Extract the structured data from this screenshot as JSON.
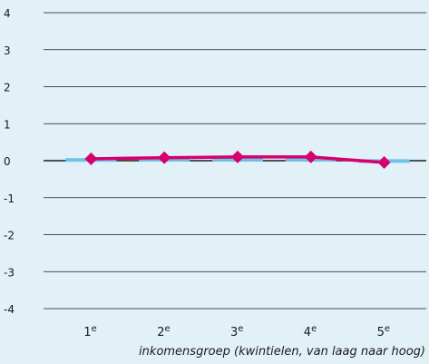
{
  "chart_data": {
    "type": "line",
    "categories": [
      "1e",
      "2e",
      "3e",
      "4e",
      "5e"
    ],
    "category_labels": [
      {
        "main": "1",
        "sup": "e"
      },
      {
        "main": "2",
        "sup": "e"
      },
      {
        "main": "3",
        "sup": "e"
      },
      {
        "main": "4",
        "sup": "e"
      },
      {
        "main": "5",
        "sup": "e"
      }
    ],
    "series": [
      {
        "values": [
          0.05,
          0.08,
          0.1,
          0.1,
          -0.05
        ],
        "color": "#d6006e",
        "marker": "diamond"
      },
      {
        "values": [
          0.02,
          0.03,
          0.03,
          0.03,
          -0.01
        ],
        "color": "#6ec3e8",
        "style": "bar-like segments"
      }
    ],
    "ylim": [
      -4,
      4
    ],
    "yticks": [
      "4",
      "3",
      "2",
      "1",
      "0",
      "-1",
      "-2",
      "-3",
      "-4"
    ],
    "xlabel": "inkomensgroep (kwintielen, van laag naar hoog)",
    "ylabel": "",
    "grid": true,
    "legend": "none"
  }
}
